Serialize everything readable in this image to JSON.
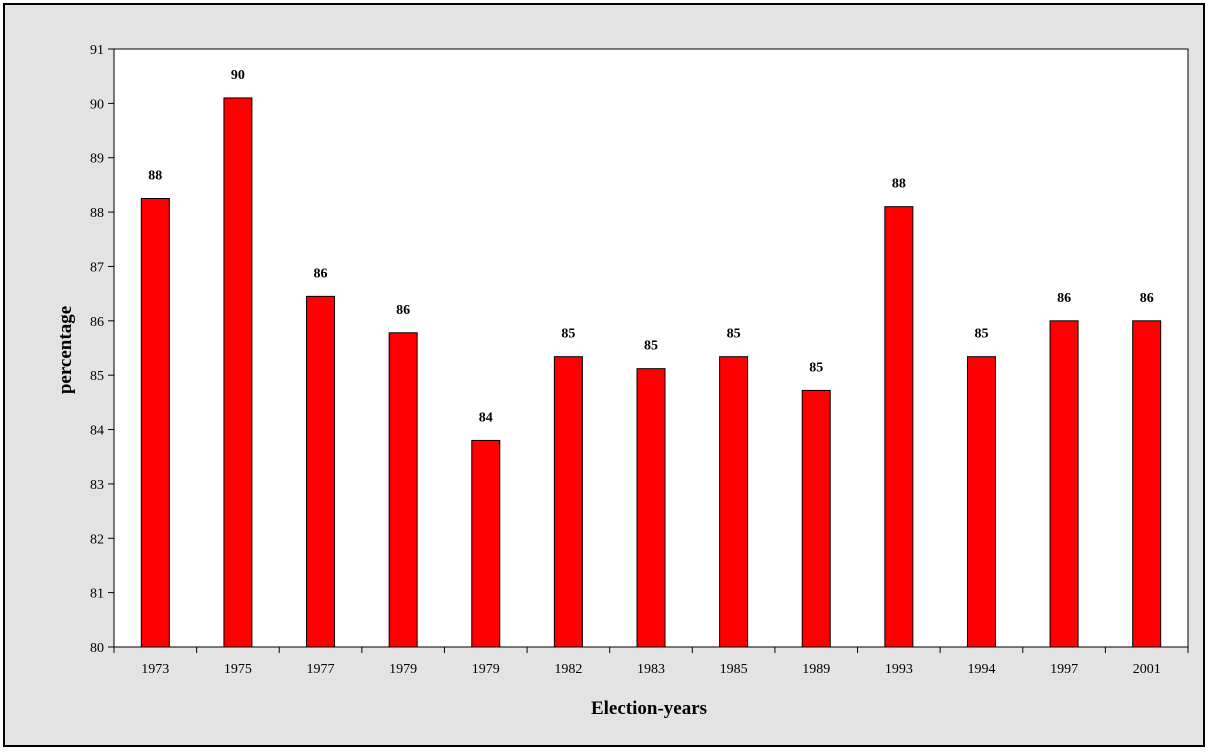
{
  "chart_data": {
    "type": "bar",
    "categories": [
      "1973",
      "1975",
      "1977",
      "1979",
      "1979",
      "1982",
      "1983",
      "1985",
      "1989",
      "1993",
      "1994",
      "1997",
      "2001"
    ],
    "values": [
      88.25,
      90.1,
      86.45,
      85.78,
      83.8,
      85.34,
      85.12,
      85.34,
      84.72,
      88.1,
      85.34,
      86.0,
      86.0
    ],
    "data_labels": [
      "88",
      "90",
      "86",
      "86",
      "84",
      "85",
      "85",
      "85",
      "85",
      "88",
      "85",
      "86",
      "86"
    ],
    "title": "",
    "xlabel": "Election-years",
    "ylabel": "percentage",
    "ylim": [
      80,
      91
    ],
    "yticks": [
      "80",
      "81",
      "82",
      "83",
      "84",
      "85",
      "86",
      "87",
      "88",
      "89",
      "90",
      "91"
    ],
    "grid": false,
    "legend": "none",
    "colors": {
      "bar": "#ff0000",
      "bar_edge": "#000000",
      "plot_background": "#ffffff",
      "chart_background": "#e3e3e3"
    }
  }
}
